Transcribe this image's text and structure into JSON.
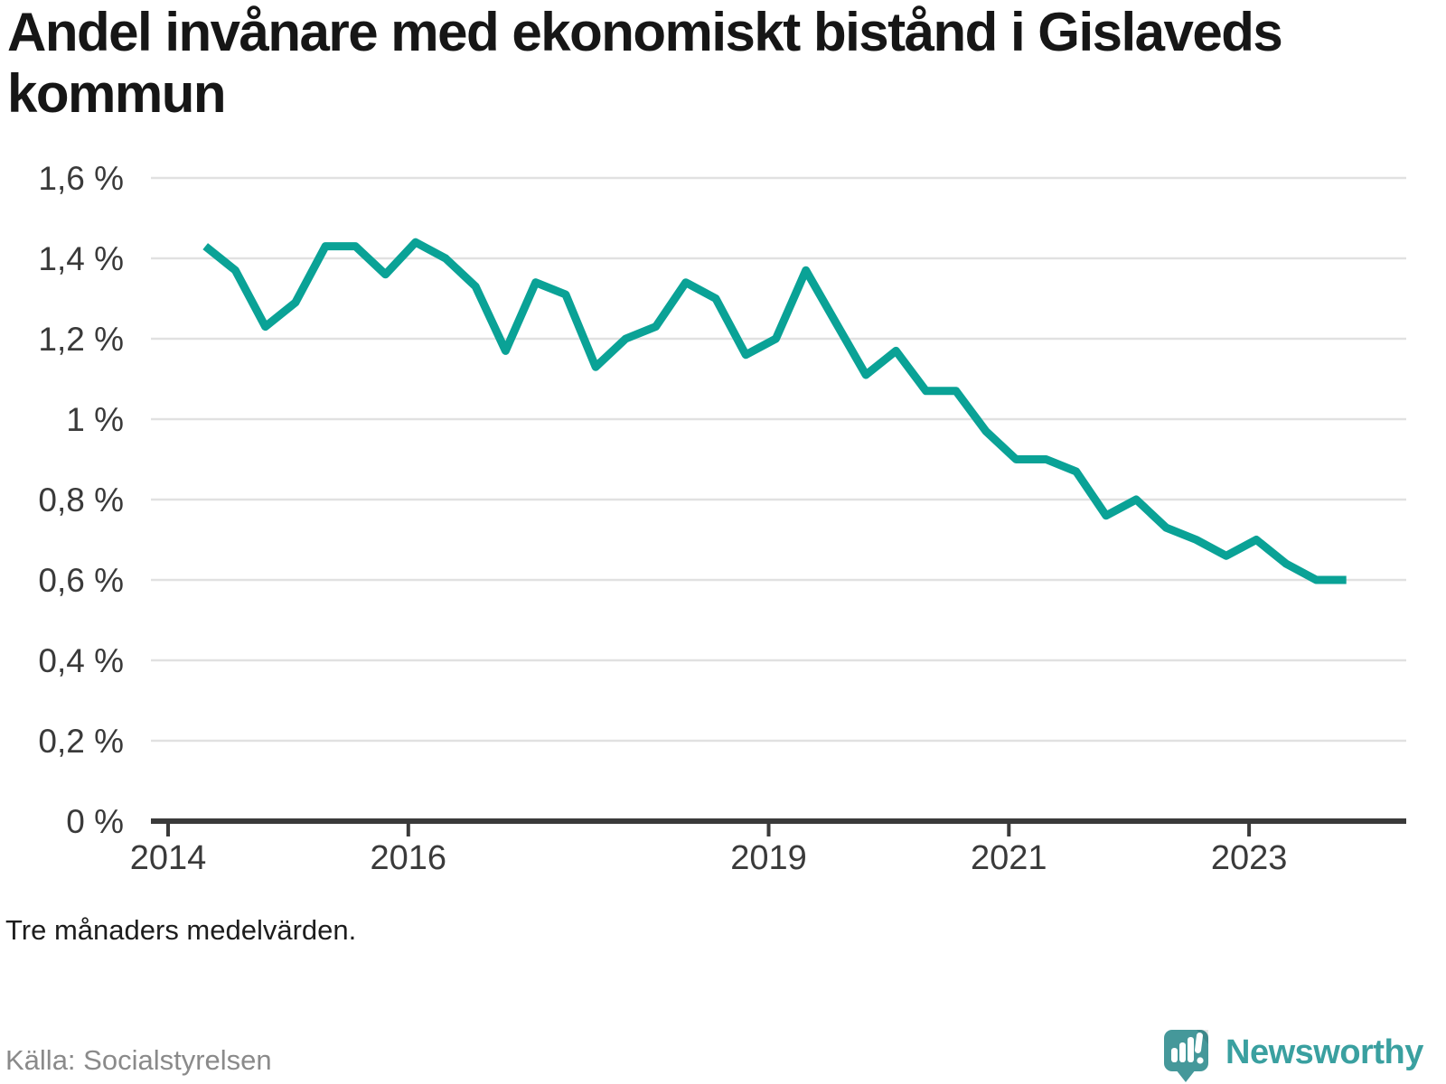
{
  "title": "Andel invånare med ekonomiskt bistånd i Gislaveds kommun",
  "footnote": "Tre månaders medelvärden.",
  "source": "Källa: Socialstyrelsen",
  "brand": {
    "name": "Newsworthy",
    "icon": "newsworthy-speech-bubble-chart-icon"
  },
  "colors": {
    "line": "#0aa296",
    "axis": "#3a3a3a",
    "grid": "#e1e1e1",
    "tick_text": "#3a3a3a",
    "title_text": "#161616",
    "source_text": "#8a8a8a",
    "brand_teal": "#45989a",
    "background": "#ffffff"
  },
  "chart_data": {
    "type": "line",
    "title": "Andel invånare med ekonomiskt bistånd i Gislaveds kommun",
    "subtitle": "Tre månaders medelvärden.",
    "source": "Källa: Socialstyrelsen",
    "unit": "%",
    "xlabel": "",
    "ylabel": "",
    "ylim": [
      0,
      1.6
    ],
    "xlim_years": [
      2013.86,
      2024.31
    ],
    "grid": "horizontal-only",
    "legend": "none",
    "y_ticks": [
      {
        "value": 0,
        "label": "0 %"
      },
      {
        "value": 0.2,
        "label": "0,2 %"
      },
      {
        "value": 0.4,
        "label": "0,4 %"
      },
      {
        "value": 0.6,
        "label": "0,6 %"
      },
      {
        "value": 0.8,
        "label": "0,8 %"
      },
      {
        "value": 1,
        "label": "1 %"
      },
      {
        "value": 1.2,
        "label": "1,2 %"
      },
      {
        "value": 1.4,
        "label": "1,4 %"
      },
      {
        "value": 1.6,
        "label": "1,6 %"
      }
    ],
    "x_ticks": [
      {
        "value": 2014,
        "label": "2014"
      },
      {
        "value": 2016,
        "label": "2016"
      },
      {
        "value": 2019,
        "label": "2019"
      },
      {
        "value": 2021,
        "label": "2021"
      },
      {
        "value": 2023,
        "label": "2023"
      }
    ],
    "series": [
      {
        "name": "Andel invånare med ekonomiskt bistånd",
        "color": "#0aa296",
        "start_year_decimal": 2014.31,
        "step_years": 0.25,
        "periods": [
          "2014-Q2",
          "2014-Q3",
          "2014-Q4",
          "2015-Q1",
          "2015-Q2",
          "2015-Q3",
          "2015-Q4",
          "2016-Q1",
          "2016-Q2",
          "2016-Q3",
          "2016-Q4",
          "2017-Q1",
          "2017-Q2",
          "2017-Q3",
          "2017-Q4",
          "2018-Q1",
          "2018-Q2",
          "2018-Q3",
          "2018-Q4",
          "2019-Q1",
          "2019-Q2",
          "2019-Q3",
          "2019-Q4",
          "2020-Q1",
          "2020-Q2",
          "2020-Q3",
          "2020-Q4",
          "2021-Q1",
          "2021-Q2",
          "2021-Q3",
          "2021-Q4",
          "2022-Q1",
          "2022-Q2",
          "2022-Q3",
          "2022-Q4",
          "2023-Q1",
          "2023-Q2",
          "2023-Q3",
          "2023-Q4"
        ],
        "values": [
          1.43,
          1.37,
          1.23,
          1.29,
          1.43,
          1.43,
          1.36,
          1.44,
          1.4,
          1.33,
          1.17,
          1.34,
          1.31,
          1.13,
          1.2,
          1.23,
          1.34,
          1.3,
          1.16,
          1.2,
          1.37,
          1.24,
          1.11,
          1.17,
          1.07,
          1.07,
          0.97,
          0.9,
          0.9,
          0.87,
          0.76,
          0.8,
          0.73,
          0.7,
          0.66,
          0.7,
          0.64,
          0.6,
          0.6
        ]
      }
    ]
  }
}
